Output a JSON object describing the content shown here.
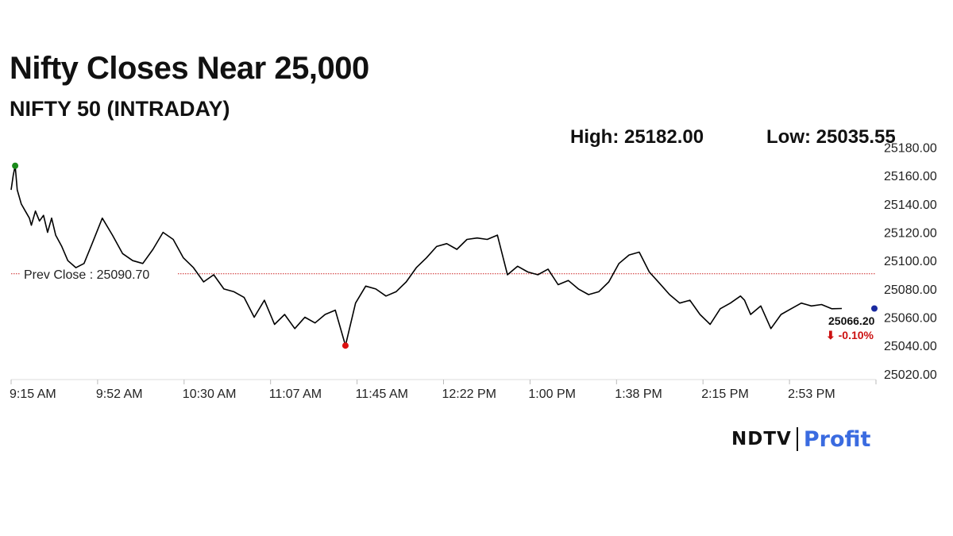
{
  "title": "Nifty Closes Near 25,000",
  "subtitle": "NIFTY 50 (INTRADAY)",
  "stats": {
    "high": "High: 25182.00",
    "low": "Low: 25035.55"
  },
  "brand": {
    "main": "NDTV",
    "profit": "Profit",
    "accent_color": "#3a6be0"
  },
  "chart_data": {
    "type": "line",
    "xlabel": "",
    "ylabel": "",
    "x_ticks": [
      "9:15 AM",
      "9:52 AM",
      "10:30 AM",
      "11:07 AM",
      "11:45 AM",
      "12:22 PM",
      "1:00 PM",
      "1:38 PM",
      "2:15 PM",
      "2:53 PM"
    ],
    "y_ticks": [
      "25020.00",
      "25040.00",
      "25060.00",
      "25080.00",
      "25100.00",
      "25120.00",
      "25140.00",
      "25160.00",
      "25180.00"
    ],
    "ylim": [
      25016,
      25182
    ],
    "grid": false,
    "prev_close": {
      "label": "Prev Close : 25090.70",
      "value": 25090.7,
      "color": "#cc2222"
    },
    "last": {
      "value_label": "25066.20",
      "change_label": "⬇ -0.10%",
      "change_color": "#cc1111"
    },
    "marker_colors": {
      "high": "#1a8a1a",
      "low": "#dd1111",
      "last": "#1a2aa0"
    },
    "line_color": "#000000",
    "series": [
      {
        "x": [
          0,
          1,
          2,
          3,
          5,
          7,
          9,
          10,
          12,
          14,
          16,
          18,
          20,
          22,
          25,
          28,
          32,
          36,
          40,
          45,
          50,
          55,
          60,
          65,
          70,
          75,
          80,
          85,
          90,
          95,
          100,
          105,
          110,
          115,
          120,
          125,
          130,
          135,
          140,
          145,
          150,
          155,
          160,
          165,
          170,
          175,
          180,
          185,
          190,
          195,
          200,
          205,
          210,
          215,
          220,
          225,
          230,
          235,
          240,
          245,
          250,
          255,
          260,
          265,
          270,
          275,
          280,
          285,
          290,
          295,
          300,
          305,
          310,
          315,
          320,
          325,
          330,
          335,
          340,
          345,
          350,
          355,
          360,
          362,
          365,
          370,
          375,
          380,
          385,
          390,
          395,
          400,
          405,
          410
        ],
        "values": [
          25150,
          25160,
          25167,
          25150,
          25140,
          25135,
          25130,
          25125,
          25135,
          25128,
          25132,
          25120,
          25130,
          25118,
          25110,
          25100,
          25095,
          25098,
          25112,
          25130,
          25118,
          25105,
          25100,
          25098,
          25108,
          25120,
          25115,
          25102,
          25095,
          25085,
          25090,
          25080,
          25078,
          25074,
          25060,
          25072,
          25055,
          25062,
          25052,
          25060,
          25056,
          25062,
          25065,
          25040,
          25070,
          25082,
          25080,
          25075,
          25078,
          25085,
          25095,
          25102,
          25110,
          25112,
          25108,
          25115,
          25116,
          25115,
          25118,
          25090,
          25096,
          25092,
          25090,
          25094,
          25083,
          25086,
          25080,
          25076,
          25078,
          25085,
          25098,
          25104,
          25106,
          25092,
          25084,
          25076,
          25070,
          25072,
          25062,
          25055,
          25066,
          25070,
          25075,
          25072,
          25062,
          25068,
          25052,
          25062,
          25066,
          25070,
          25068,
          25069,
          25066,
          25066.2
        ]
      }
    ]
  }
}
